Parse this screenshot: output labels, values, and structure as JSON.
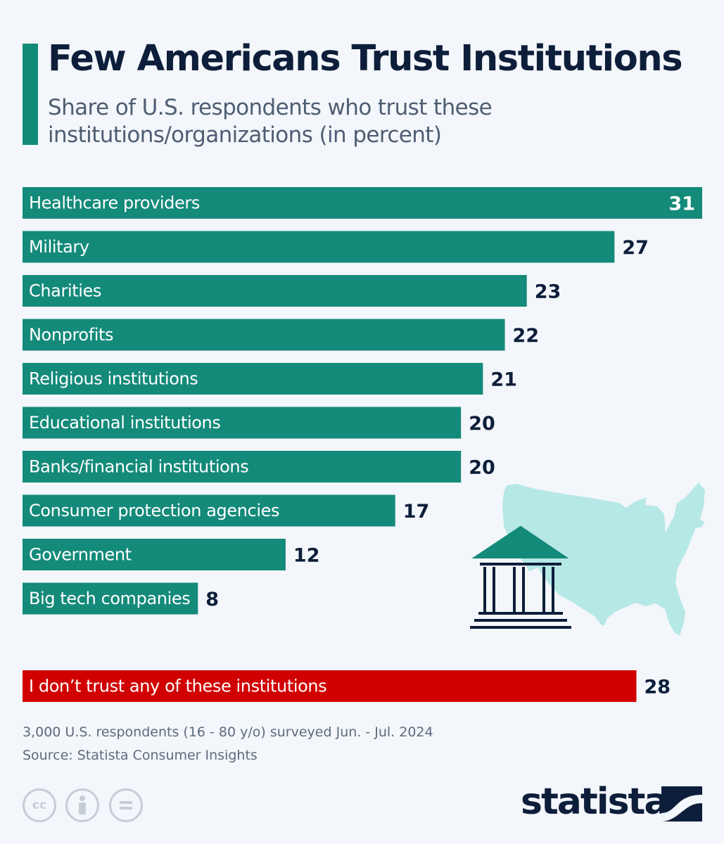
{
  "header": {
    "title": "Few Americans Trust Institutions",
    "subtitle": "Share of U.S. respondents who trust these institutions/organizations (in percent)"
  },
  "chart_data": {
    "type": "bar",
    "orientation": "horizontal",
    "title": "Few Americans Trust Institutions",
    "subtitle": "Share of U.S. respondents who trust these institutions/organizations (in percent)",
    "xlabel": "",
    "ylabel": "",
    "xlim": [
      0,
      31
    ],
    "categories": [
      "Healthcare providers",
      "Military",
      "Charities",
      "Nonprofits",
      "Religious institutions",
      "Educational institutions",
      "Banks/financial institutions",
      "Consumer protection agencies",
      "Government",
      "Big tech companies"
    ],
    "values": [
      31,
      27,
      23,
      22,
      21,
      20,
      20,
      17,
      12,
      8
    ],
    "extra_bar": {
      "category": "I don’t trust any of these institutions",
      "value": 28
    },
    "grid": false,
    "colors": {
      "bar": "#148a7a",
      "extra_bar": "#d10000",
      "value_text": "#0d1e3a"
    }
  },
  "illustration": {
    "map_icon": "us-map-icon",
    "building_icon": "institution-building-icon",
    "map_color": "#b6e8e6",
    "building_color": "#148a7a"
  },
  "footer": {
    "survey_note": "3,000 U.S. respondents (16 - 80 y/o) surveyed Jun. - Jul. 2024",
    "source": "Source: Statista Consumer Insights",
    "license_icons": [
      "cc-icon",
      "attribution-icon",
      "no-derivatives-icon"
    ],
    "brand": "statista"
  }
}
